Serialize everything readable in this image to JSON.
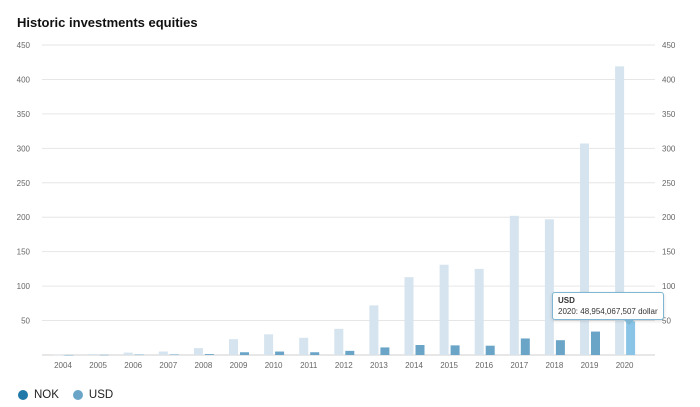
{
  "chart_data": {
    "type": "bar",
    "title": "Historic investments equities",
    "categories": [
      "2004",
      "2005",
      "2006",
      "2007",
      "2008",
      "2009",
      "2010",
      "2011",
      "2012",
      "2013",
      "2014",
      "2015",
      "2016",
      "2017",
      "2018",
      "2019",
      "2020"
    ],
    "series": [
      {
        "name": "NOK",
        "values": [
          0.3,
          1.5,
          3.5,
          5,
          10,
          23,
          30,
          25,
          38,
          72,
          113,
          131,
          125,
          202,
          197,
          307,
          419
        ]
      },
      {
        "name": "USD",
        "values": [
          0.1,
          0.3,
          0.6,
          0.8,
          1.3,
          4,
          5,
          4,
          6,
          11,
          14.5,
          14,
          13.5,
          24,
          21.5,
          34,
          48.954067507
        ]
      }
    ],
    "ylim": [
      0,
      450
    ],
    "yticks": [
      50,
      100,
      150,
      200,
      250,
      300,
      350,
      400,
      450
    ],
    "grid": true,
    "legend_position": "bottom-left",
    "colors": {
      "NOK": "#d6e4ef",
      "USD": "#6aa5c8",
      "USD_highlight": "#8ac4e6",
      "NOK_legend": "#1f78a8",
      "USD_legend": "#6aa5c8",
      "grid": "#e6e6e6"
    }
  },
  "legend": [
    {
      "label": "NOK",
      "color": "#1f78a8"
    },
    {
      "label": "USD",
      "color": "#6aa5c8"
    }
  ],
  "tooltip": {
    "series": "USD",
    "text": "2020: 48,954,067,507 dollar"
  }
}
